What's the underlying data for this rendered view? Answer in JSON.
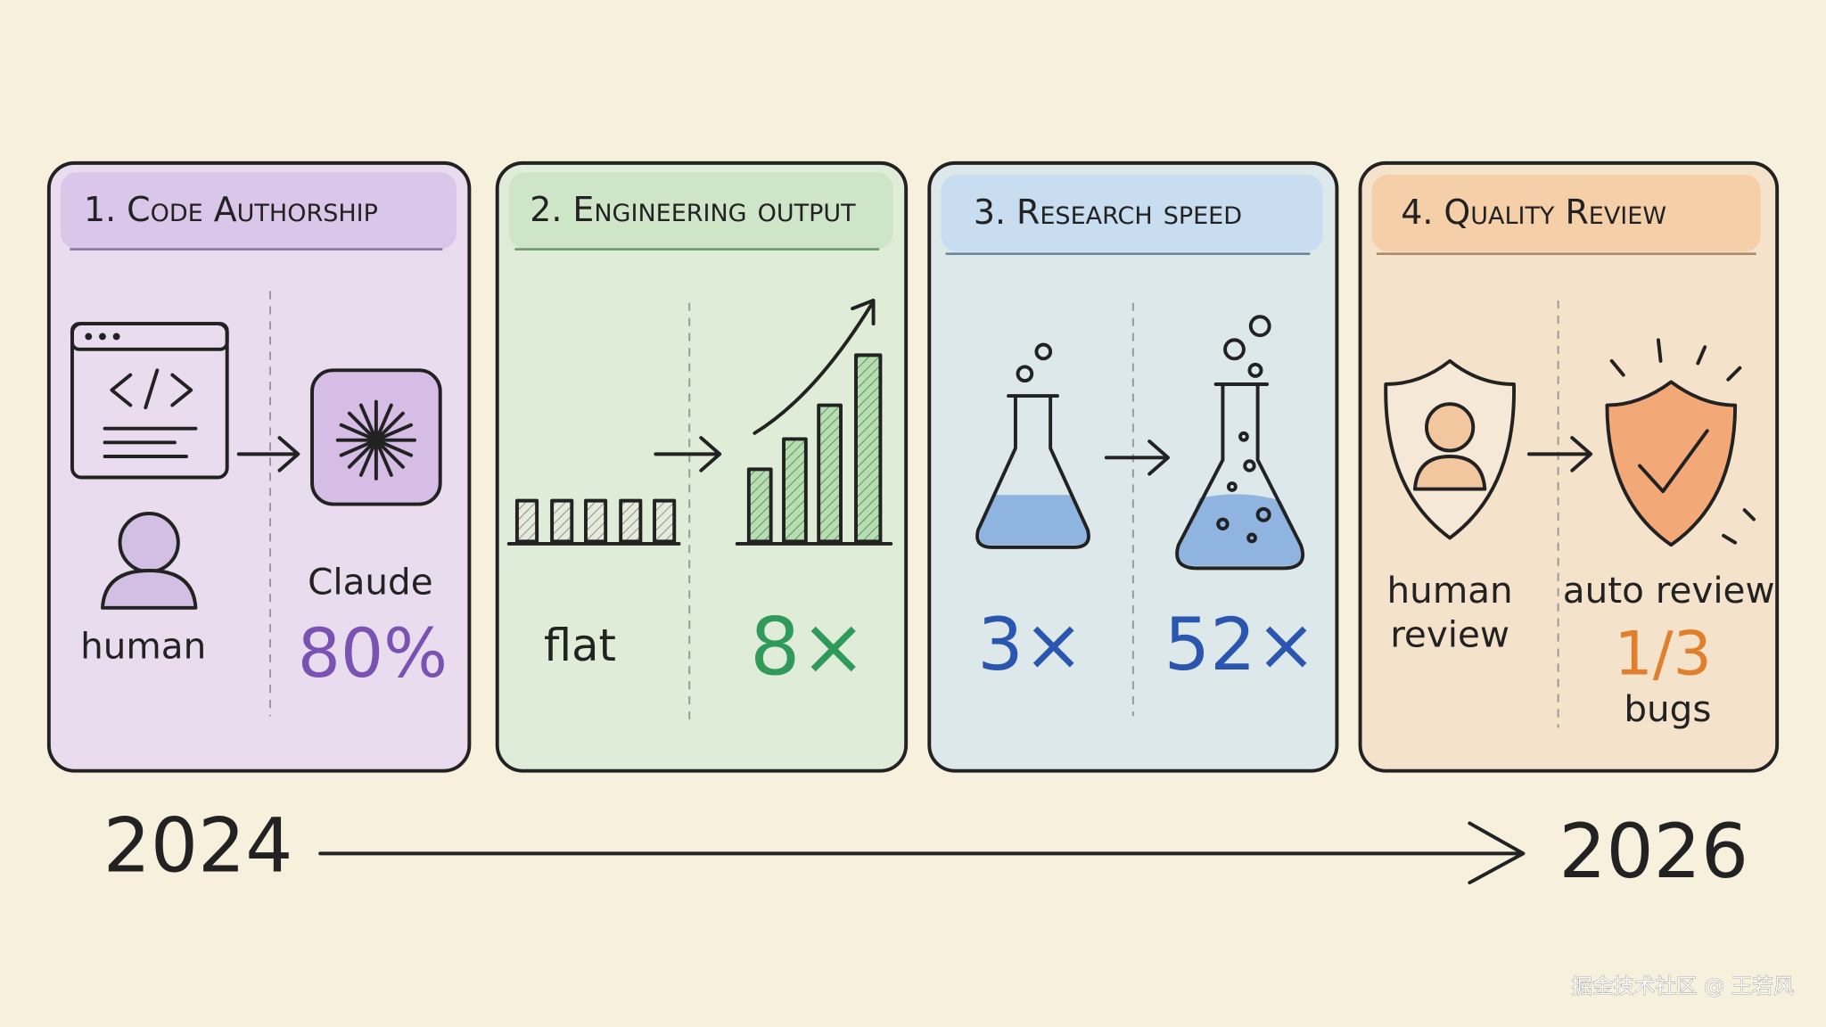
{
  "panels": [
    {
      "title": "1. Code Authorship",
      "before_label": "human",
      "after_label": "Claude",
      "after_value": "80%"
    },
    {
      "title": "2. Engineering output",
      "before_label": "flat",
      "after_value": "8×"
    },
    {
      "title": "3. Research speed",
      "before_value": "3×",
      "after_value": "52×"
    },
    {
      "title": "4. Quality Review",
      "before_label_lines": [
        "human",
        "review"
      ],
      "after_label": "auto review",
      "after_value": "1/3",
      "after_note": "bugs"
    }
  ],
  "timeline": {
    "start": "2024",
    "end": "2026"
  },
  "watermark": "掘金技术社区 @ 王若风"
}
